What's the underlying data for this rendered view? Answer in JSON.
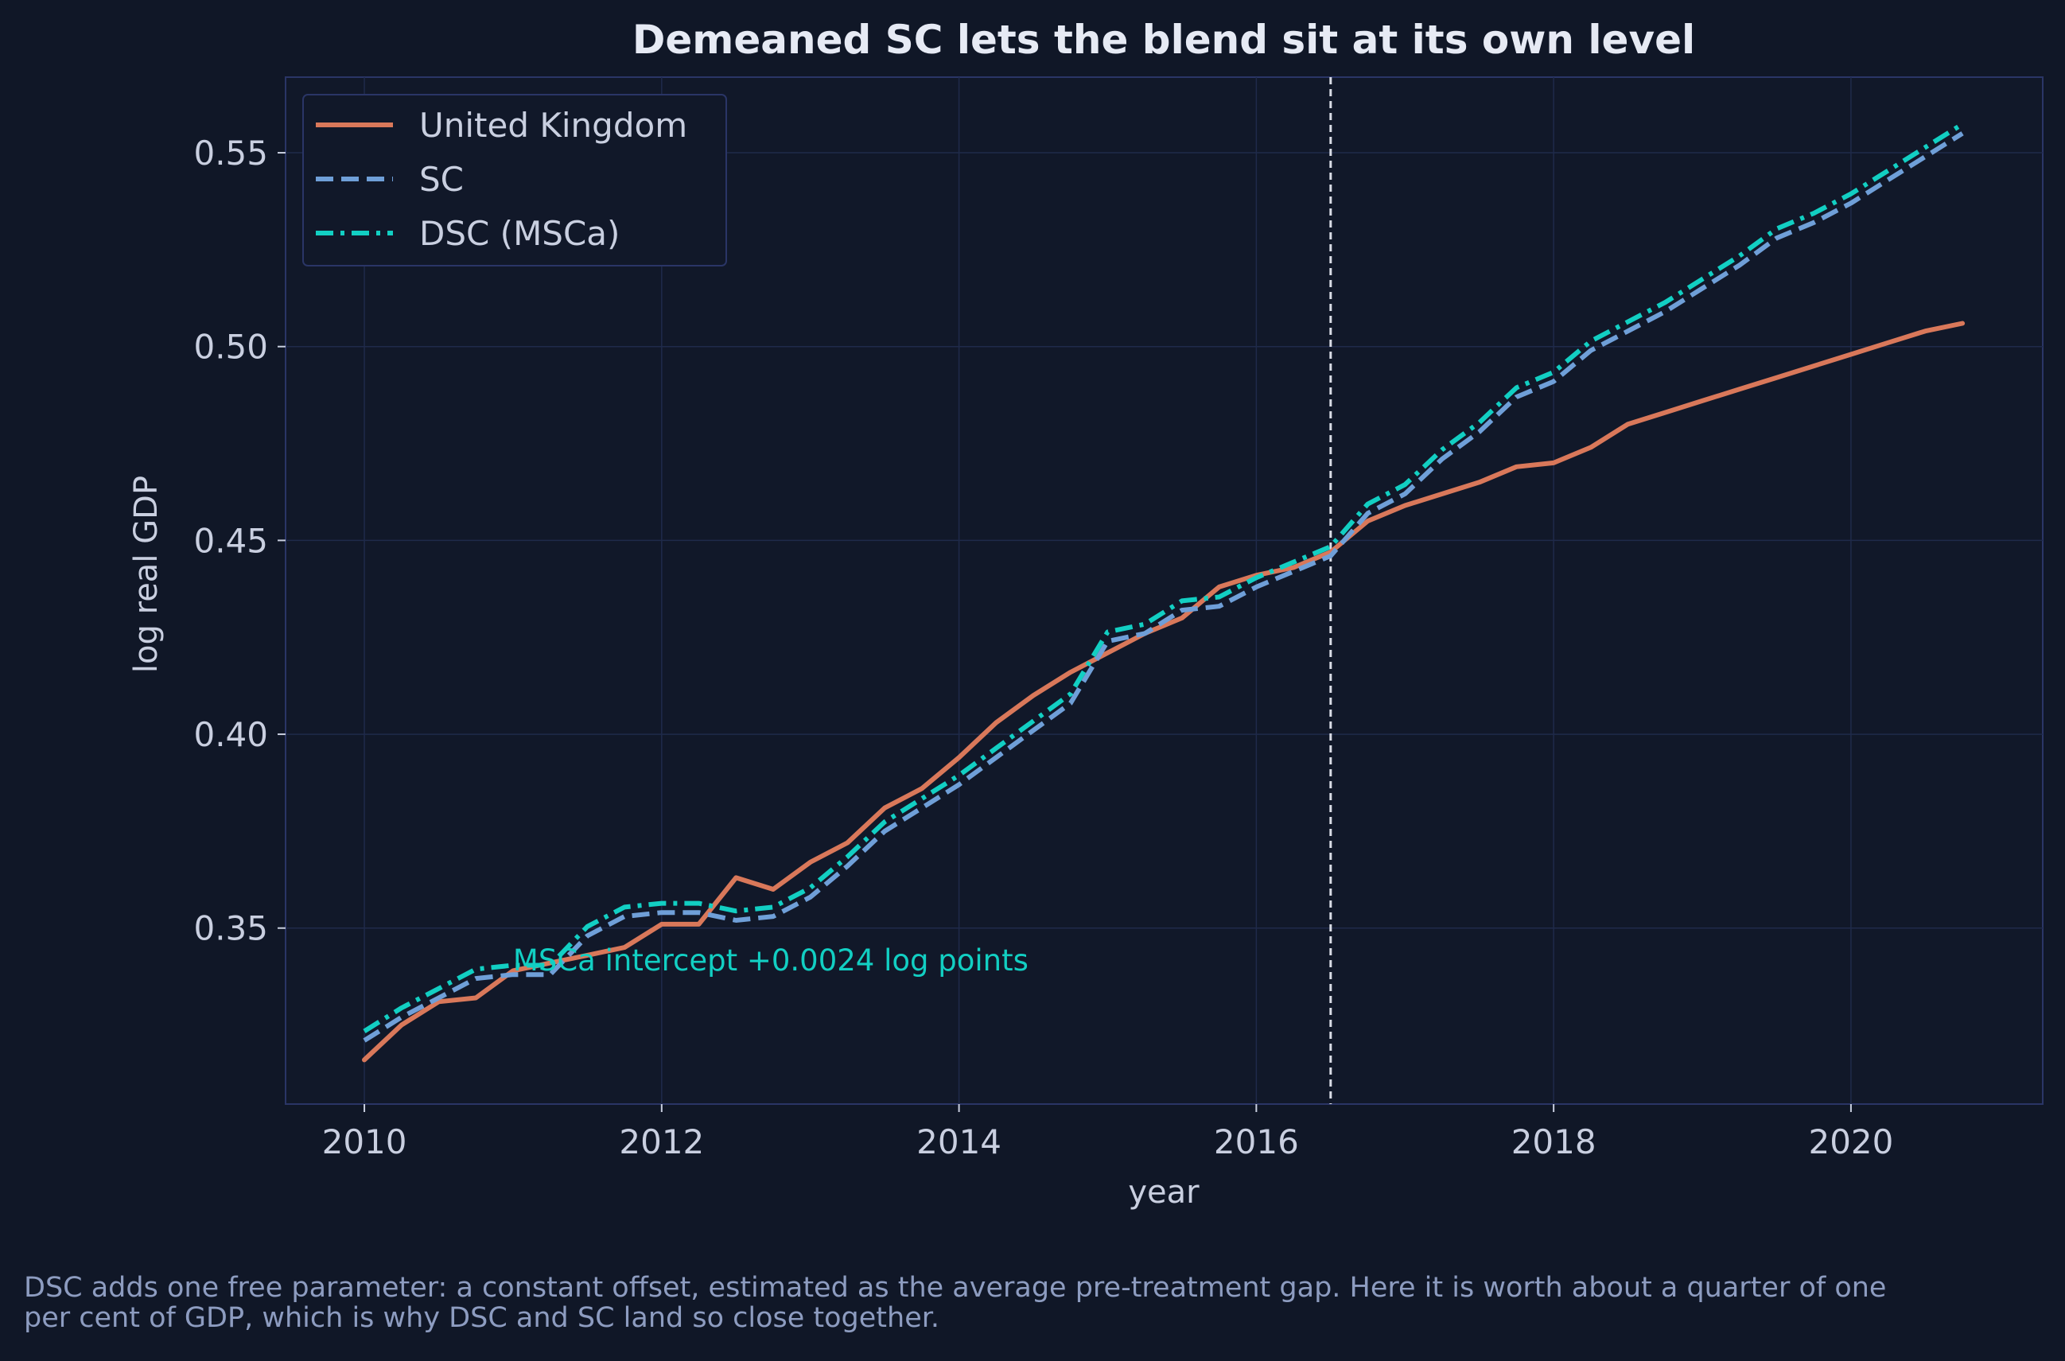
{
  "chart_data": {
    "type": "line",
    "title": "Demeaned SC lets the blend sit at its own level",
    "xlabel": "year",
    "ylabel": "log real GDP",
    "xlim": [
      2009.47,
      2021.29
    ],
    "ylim": [
      0.3046,
      0.5695
    ],
    "x_ticks": [
      2010,
      2012,
      2014,
      2016,
      2018,
      2020
    ],
    "y_ticks": [
      0.35,
      0.4,
      0.45,
      0.5,
      0.55
    ],
    "y_tick_labels": [
      "0.35",
      "0.40",
      "0.45",
      "0.50",
      "0.55"
    ],
    "grid": true,
    "legend_position": "top-left",
    "treatment_line_x": 2016.5,
    "annotation": {
      "text": "MSCa intercept +0.0024 log points",
      "x": 2011.0,
      "y": 0.3415
    },
    "x": [
      2010.0,
      2010.25,
      2010.5,
      2010.75,
      2011.0,
      2011.25,
      2011.5,
      2011.75,
      2012.0,
      2012.25,
      2012.5,
      2012.75,
      2013.0,
      2013.25,
      2013.5,
      2013.75,
      2014.0,
      2014.25,
      2014.5,
      2014.75,
      2015.0,
      2015.25,
      2015.5,
      2015.75,
      2016.0,
      2016.25,
      2016.5,
      2016.75,
      2017.0,
      2017.25,
      2017.5,
      2017.75,
      2018.0,
      2018.25,
      2018.5,
      2018.75,
      2019.0,
      2019.25,
      2019.5,
      2019.75,
      2020.0,
      2020.25,
      2020.5,
      2020.75
    ],
    "series": [
      {
        "name": "United Kingdom",
        "color": "#d9785a",
        "dash": "solid",
        "values": [
          0.316,
          0.325,
          0.331,
          0.332,
          0.339,
          0.341,
          0.343,
          0.345,
          0.351,
          0.351,
          0.363,
          0.36,
          0.367,
          0.372,
          0.381,
          0.386,
          0.394,
          0.403,
          0.41,
          0.416,
          0.421,
          0.426,
          0.43,
          0.438,
          0.441,
          0.443,
          0.447,
          0.455,
          0.459,
          0.462,
          0.465,
          0.469,
          0.47,
          0.474,
          0.48,
          0.483,
          0.486,
          0.489,
          0.492,
          0.495,
          0.498,
          0.501,
          0.504,
          0.506
        ]
      },
      {
        "name": "SC",
        "color": "#6f9fd8",
        "dash": "dashed",
        "values": [
          0.321,
          0.327,
          0.332,
          0.337,
          0.338,
          0.338,
          0.348,
          0.353,
          0.354,
          0.354,
          0.352,
          0.353,
          0.358,
          0.366,
          0.375,
          0.381,
          0.387,
          0.394,
          0.401,
          0.408,
          0.424,
          0.426,
          0.432,
          0.433,
          0.438,
          0.442,
          0.446,
          0.457,
          0.462,
          0.471,
          0.478,
          0.487,
          0.491,
          0.499,
          0.504,
          0.509,
          0.515,
          0.521,
          0.528,
          0.532,
          0.537,
          0.543,
          0.549,
          0.555
        ]
      },
      {
        "name": "DSC (MSCa)",
        "color": "#12cfc3",
        "dash": "dashdot",
        "values": [
          0.3234,
          0.3294,
          0.3344,
          0.3394,
          0.3404,
          0.3404,
          0.3504,
          0.3554,
          0.3564,
          0.3564,
          0.3544,
          0.3554,
          0.3604,
          0.3684,
          0.3774,
          0.3834,
          0.3894,
          0.3964,
          0.4034,
          0.4104,
          0.4264,
          0.4284,
          0.4344,
          0.4354,
          0.4404,
          0.4444,
          0.4484,
          0.4594,
          0.4644,
          0.4734,
          0.4804,
          0.4894,
          0.4934,
          0.5014,
          0.5064,
          0.5114,
          0.5174,
          0.5234,
          0.5304,
          0.5344,
          0.5394,
          0.5454,
          0.5514,
          0.5574
        ]
      }
    ]
  },
  "caption": "DSC adds one free parameter: a constant offset, estimated as the average pre-treatment gap. Here it is worth about a quarter of one per cent of GDP, which is why DSC and SC land so close together."
}
